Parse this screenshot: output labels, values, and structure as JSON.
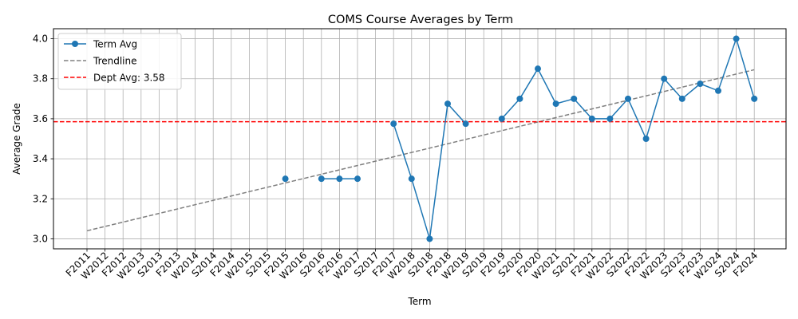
{
  "chart_data": {
    "type": "line",
    "title": "COMS Course Averages by Term",
    "xlabel": "Term",
    "ylabel": "Average Grade",
    "ylim": [
      2.95,
      4.05
    ],
    "yticks": [
      "3.0",
      "3.2",
      "3.4",
      "3.6",
      "3.8",
      "4.0"
    ],
    "ytick_values": [
      3.0,
      3.2,
      3.4,
      3.6,
      3.8,
      4.0
    ],
    "grid": true,
    "legend_position": "top-left",
    "categories": [
      "F2011",
      "W2012",
      "F2012",
      "W2013",
      "S2013",
      "F2013",
      "W2014",
      "S2014",
      "F2014",
      "W2015",
      "S2015",
      "F2015",
      "W2016",
      "S2016",
      "F2016",
      "W2017",
      "S2017",
      "F2017",
      "W2018",
      "S2018",
      "F2018",
      "W2019",
      "S2019",
      "F2019",
      "S2020",
      "F2020",
      "W2021",
      "S2021",
      "F2021",
      "W2022",
      "S2022",
      "F2022",
      "W2023",
      "S2023",
      "F2023",
      "W2024",
      "S2024",
      "F2024"
    ],
    "series": [
      {
        "name": "Term Avg",
        "color": "#1f77b4",
        "values": [
          null,
          null,
          null,
          null,
          null,
          null,
          null,
          null,
          null,
          null,
          null,
          3.3,
          null,
          3.3,
          3.3,
          3.3,
          null,
          3.575,
          3.3,
          3.0,
          3.675,
          3.575,
          null,
          3.6,
          3.7,
          3.85,
          3.675,
          3.7,
          3.6,
          3.6,
          3.7,
          3.5,
          3.8,
          3.7,
          3.775,
          3.74,
          4.0,
          3.7
        ]
      },
      {
        "name": "Trendline",
        "color": "#808080",
        "style": "dashed",
        "start": 3.04,
        "end": 3.845
      },
      {
        "name": "Dept Avg: 3.58",
        "color": "#ff0000",
        "style": "dashed",
        "value": 3.585
      }
    ]
  }
}
